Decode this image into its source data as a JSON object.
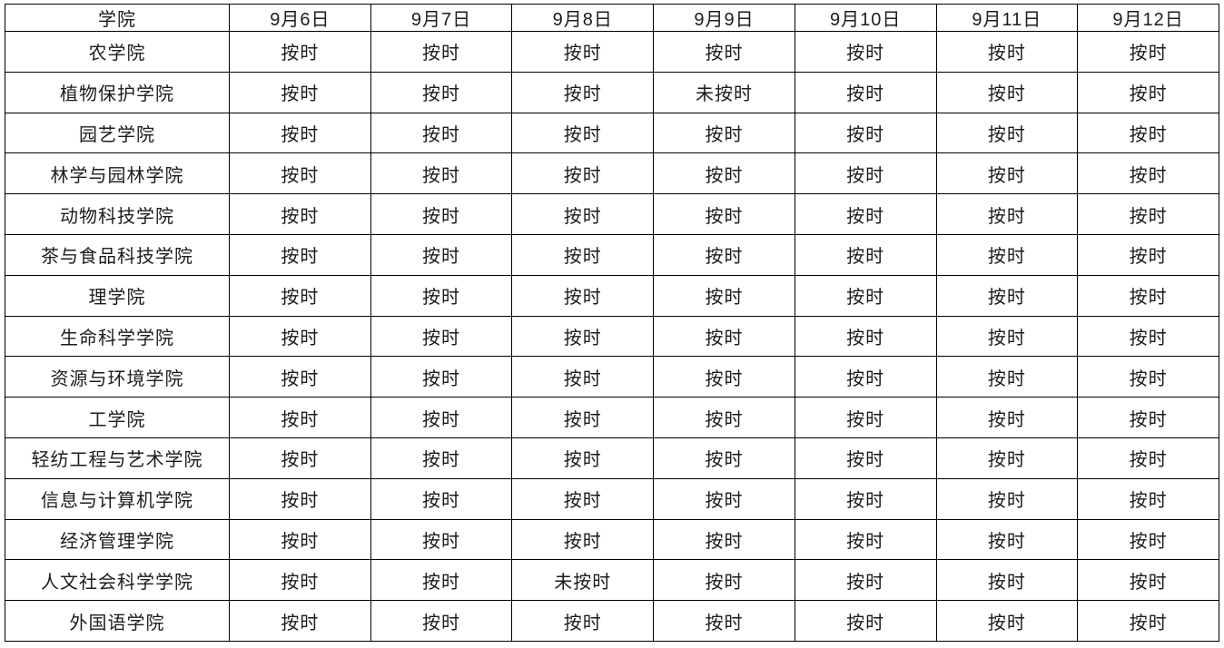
{
  "colors": {
    "background": "#ffffff",
    "grid_border": "#000000",
    "text": "#1c1c1c"
  },
  "table": {
    "columns": [
      "学院",
      "9月6日",
      "9月7日",
      "9月8日",
      "9月9日",
      "9月10日",
      "9月11日",
      "9月12日"
    ],
    "status_on_time": "按时",
    "status_late": "未按时",
    "rows": [
      {
        "college": "农学院",
        "values": [
          "按时",
          "按时",
          "按时",
          "按时",
          "按时",
          "按时",
          "按时"
        ]
      },
      {
        "college": "植物保护学院",
        "values": [
          "按时",
          "按时",
          "按时",
          "未按时",
          "按时",
          "按时",
          "按时"
        ]
      },
      {
        "college": "园艺学院",
        "values": [
          "按时",
          "按时",
          "按时",
          "按时",
          "按时",
          "按时",
          "按时"
        ]
      },
      {
        "college": "林学与园林学院",
        "values": [
          "按时",
          "按时",
          "按时",
          "按时",
          "按时",
          "按时",
          "按时"
        ]
      },
      {
        "college": "动物科技学院",
        "values": [
          "按时",
          "按时",
          "按时",
          "按时",
          "按时",
          "按时",
          "按时"
        ]
      },
      {
        "college": "茶与食品科技学院",
        "values": [
          "按时",
          "按时",
          "按时",
          "按时",
          "按时",
          "按时",
          "按时"
        ]
      },
      {
        "college": "理学院",
        "values": [
          "按时",
          "按时",
          "按时",
          "按时",
          "按时",
          "按时",
          "按时"
        ]
      },
      {
        "college": "生命科学学院",
        "values": [
          "按时",
          "按时",
          "按时",
          "按时",
          "按时",
          "按时",
          "按时"
        ]
      },
      {
        "college": "资源与环境学院",
        "values": [
          "按时",
          "按时",
          "按时",
          "按时",
          "按时",
          "按时",
          "按时"
        ]
      },
      {
        "college": "工学院",
        "values": [
          "按时",
          "按时",
          "按时",
          "按时",
          "按时",
          "按时",
          "按时"
        ]
      },
      {
        "college": "轻纺工程与艺术学院",
        "values": [
          "按时",
          "按时",
          "按时",
          "按时",
          "按时",
          "按时",
          "按时"
        ]
      },
      {
        "college": "信息与计算机学院",
        "values": [
          "按时",
          "按时",
          "按时",
          "按时",
          "按时",
          "按时",
          "按时"
        ]
      },
      {
        "college": "经济管理学院",
        "values": [
          "按时",
          "按时",
          "按时",
          "按时",
          "按时",
          "按时",
          "按时"
        ]
      },
      {
        "college": "人文社会科学学院",
        "values": [
          "按时",
          "按时",
          "未按时",
          "按时",
          "按时",
          "按时",
          "按时"
        ]
      },
      {
        "college": "外国语学院",
        "values": [
          "按时",
          "按时",
          "按时",
          "按时",
          "按时",
          "按时",
          "按时"
        ]
      }
    ]
  }
}
